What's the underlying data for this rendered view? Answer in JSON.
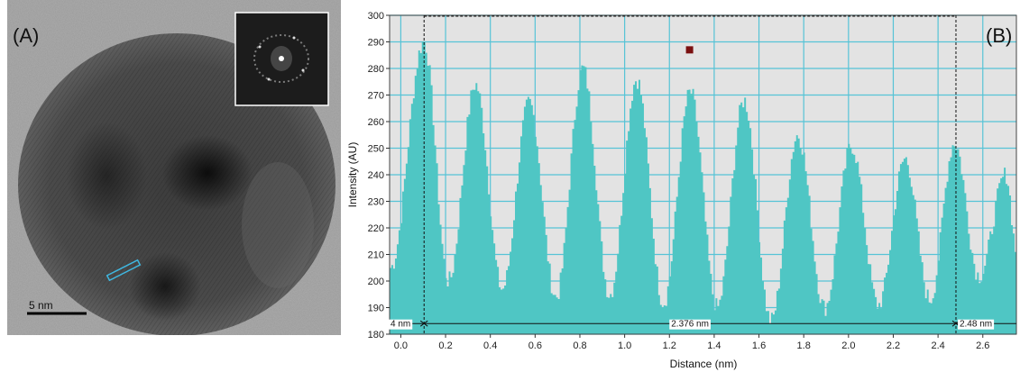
{
  "panel_a": {
    "label": "(A)",
    "scale_bar_label": "5 nm"
  },
  "chart_data": {
    "type": "area",
    "panel_label": "(B)",
    "xlabel": "Distance (nm)",
    "ylabel": "Intensity (AU)",
    "xlim": [
      -0.05,
      2.75
    ],
    "ylim": [
      180,
      300
    ],
    "x_ticks": [
      "0.0",
      "0.2",
      "0.4",
      "0.6",
      "0.8",
      "1.0",
      "1.2",
      "1.4",
      "1.6",
      "1.8",
      "2.0",
      "2.2",
      "2.4",
      "2.6"
    ],
    "y_ticks": [
      "180",
      "190",
      "200",
      "210",
      "220",
      "230",
      "240",
      "250",
      "260",
      "270",
      "280",
      "290",
      "300"
    ],
    "grid": true,
    "series_color": "#4fc6c4",
    "background_color": "#e3e3e3",
    "grid_color": "#56c3d6",
    "marker": {
      "x": 1.29,
      "y": 287,
      "color": "#7a1010"
    },
    "peaks": [
      {
        "x": 0.1,
        "y": 290
      },
      {
        "x": 0.33,
        "y": 274
      },
      {
        "x": 0.57,
        "y": 267
      },
      {
        "x": 0.81,
        "y": 280
      },
      {
        "x": 1.05,
        "y": 276
      },
      {
        "x": 1.29,
        "y": 271
      },
      {
        "x": 1.53,
        "y": 268
      },
      {
        "x": 1.77,
        "y": 255
      },
      {
        "x": 2.01,
        "y": 251
      },
      {
        "x": 2.25,
        "y": 246
      },
      {
        "x": 2.47,
        "y": 252
      },
      {
        "x": 2.7,
        "y": 240
      }
    ],
    "valleys": [
      {
        "x": -0.05,
        "y": 205
      },
      {
        "x": 0.21,
        "y": 200
      },
      {
        "x": 0.45,
        "y": 197
      },
      {
        "x": 0.69,
        "y": 194
      },
      {
        "x": 0.93,
        "y": 195
      },
      {
        "x": 1.17,
        "y": 192
      },
      {
        "x": 1.41,
        "y": 190
      },
      {
        "x": 1.65,
        "y": 185
      },
      {
        "x": 1.89,
        "y": 190
      },
      {
        "x": 2.13,
        "y": 191
      },
      {
        "x": 2.36,
        "y": 193
      },
      {
        "x": 2.58,
        "y": 202
      },
      {
        "x": 2.75,
        "y": 210
      }
    ],
    "markers": [
      {
        "x": 0.104
      },
      {
        "x": 2.48
      }
    ],
    "annotations": {
      "left": "4 nm",
      "middle": "2.376 nm",
      "right": "2.48 nm"
    }
  }
}
